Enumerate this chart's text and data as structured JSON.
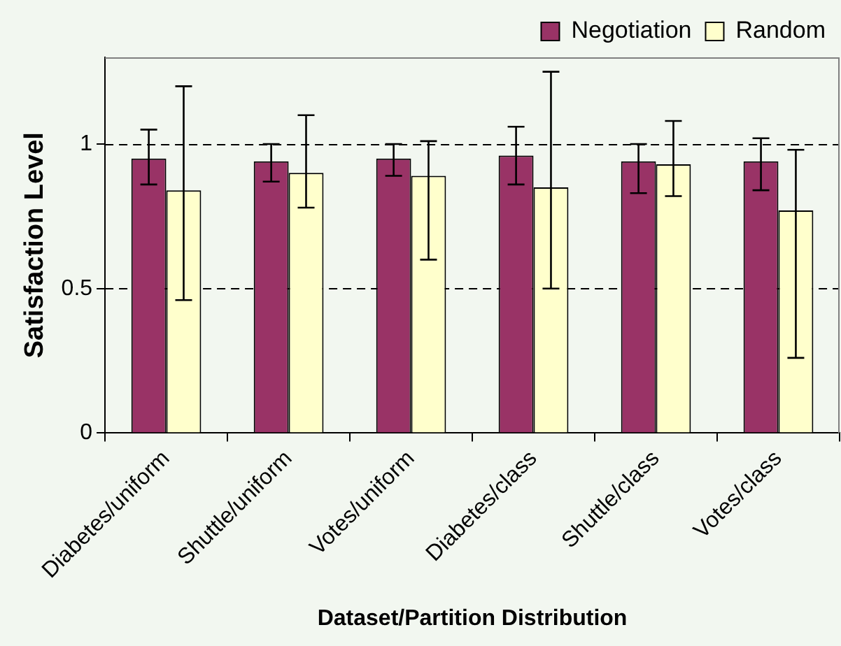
{
  "chart_data": {
    "type": "bar",
    "xlabel": "Dataset/Partition Distribution",
    "ylabel": "Satisfaction Level",
    "categories": [
      "Diabetes/uniform",
      "Shuttle/uniform",
      "Votes/uniform",
      "Diabetes/class",
      "Shuttle/class",
      "Votes/class"
    ],
    "series": [
      {
        "name": "Negotiation",
        "color": "#993366",
        "values": [
          0.95,
          0.94,
          0.95,
          0.96,
          0.94,
          0.94
        ],
        "errors": [
          [
            0.86,
            1.05
          ],
          [
            0.87,
            1.0
          ],
          [
            0.89,
            1.0
          ],
          [
            0.86,
            1.06
          ],
          [
            0.83,
            1.0
          ],
          [
            0.84,
            1.02
          ]
        ]
      },
      {
        "name": "Random",
        "color": "#ffffcc",
        "values": [
          0.84,
          0.9,
          0.89,
          0.85,
          0.93,
          0.77
        ],
        "errors": [
          [
            0.46,
            1.2
          ],
          [
            0.78,
            1.1
          ],
          [
            0.6,
            1.01
          ],
          [
            0.5,
            1.25
          ],
          [
            0.82,
            1.08
          ],
          [
            0.26,
            0.98
          ]
        ]
      }
    ],
    "ylim": [
      0,
      1.3
    ],
    "yticks": [
      0,
      0.5,
      1
    ],
    "grid": "y",
    "legend": "top right"
  }
}
